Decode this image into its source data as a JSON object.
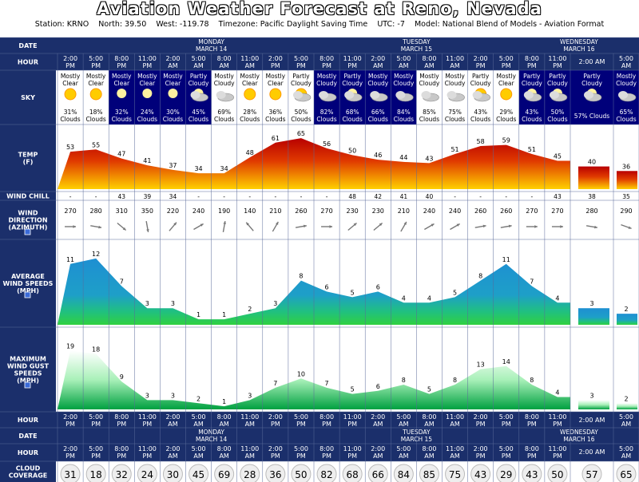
{
  "title": "Aviation Weather Forecast at Reno, Nevada",
  "subtitle": "Station: KRNO    North: 39.50    West: -119.78    Timezone: Pacific Daylight Saving Time    UTC: -7    Model: National Blend of Models - Aviation Format",
  "row_labels": {
    "date": "DATE",
    "hour": "HOUR",
    "sky": "SKY",
    "temp": [
      "TEMP",
      "(F)"
    ],
    "wind_chill": "WIND CHILL",
    "wind_dir": [
      "WIND",
      "DIRECTION",
      "(AZIMUTH)"
    ],
    "avg_wind": [
      "AVERAGE",
      "WIND SPEEDS",
      "(MPH)"
    ],
    "gust": [
      "MAXIMUM",
      "WIND GUST",
      "SPEEDS",
      "(MPH)"
    ],
    "cloud": [
      "CLOUD",
      "COVERAGE"
    ]
  },
  "dates": [
    {
      "label": [
        "MONDAY",
        "MARCH 14"
      ],
      "from": 2,
      "to": 9
    },
    {
      "label": [
        "TUESDAY",
        "MARCH 15"
      ],
      "from": 10,
      "to": 17
    },
    {
      "label": [
        "WEDNESDAY",
        "MARCH 16"
      ],
      "from": 19,
      "to": 20
    }
  ],
  "chart_data": {
    "type": "table",
    "columns": [
      {
        "hour": [
          "2:00",
          "PM"
        ],
        "sky": [
          "Mostly",
          "Clear"
        ],
        "sky_icon": "sun-icon",
        "cloud": 31,
        "temp": 53,
        "wind_chill": "-",
        "dir": 270,
        "wind": 11,
        "gust": 19
      },
      {
        "hour": [
          "5:00",
          "PM"
        ],
        "sky": [
          "Mostly",
          "Clear"
        ],
        "sky_icon": "sun-icon",
        "cloud": 18,
        "temp": 55,
        "wind_chill": "-",
        "dir": 280,
        "wind": 12,
        "gust": 18
      },
      {
        "hour": [
          "8:00",
          "PM"
        ],
        "sky": [
          "Mostly",
          "Clear"
        ],
        "sky_icon": "moon-icon",
        "cloud": 32,
        "temp": 47,
        "wind_chill": "43",
        "dir": 310,
        "wind": 7,
        "gust": 9
      },
      {
        "hour": [
          "11:00",
          "PM"
        ],
        "sky": [
          "Mostly",
          "Clear"
        ],
        "sky_icon": "moon-icon",
        "cloud": 24,
        "temp": 41,
        "wind_chill": "39",
        "dir": 350,
        "wind": 3,
        "gust": 3
      },
      {
        "hour": [
          "2:00",
          "AM"
        ],
        "sky": [
          "Mostly",
          "Clear"
        ],
        "sky_icon": "moon-icon",
        "cloud": 30,
        "temp": 37,
        "wind_chill": "34",
        "dir": 220,
        "wind": 3,
        "gust": 3
      },
      {
        "hour": [
          "5:00",
          "AM"
        ],
        "sky": [
          "Partly",
          "Cloudy"
        ],
        "sky_icon": "moon-cloud-icon",
        "cloud": 45,
        "temp": 34,
        "wind_chill": "-",
        "dir": 240,
        "wind": 1,
        "gust": 2
      },
      {
        "hour": [
          "8:00",
          "AM"
        ],
        "sky": [
          "Mostly",
          "Cloudy"
        ],
        "sky_icon": "cloud-icon",
        "cloud": 69,
        "temp": 34,
        "wind_chill": "-",
        "dir": 190,
        "wind": 1,
        "gust": 1
      },
      {
        "hour": [
          "11:00",
          "AM"
        ],
        "sky": [
          "Mostly",
          "Clear"
        ],
        "sky_icon": "sun-icon",
        "cloud": 28,
        "temp": 48,
        "wind_chill": "-",
        "dir": 140,
        "wind": 2,
        "gust": 3
      },
      {
        "hour": [
          "2:00",
          "PM"
        ],
        "sky": [
          "Mostly",
          "Clear"
        ],
        "sky_icon": "sun-icon",
        "cloud": 36,
        "temp": 61,
        "wind_chill": "-",
        "dir": 210,
        "wind": 3,
        "gust": 7
      },
      {
        "hour": [
          "5:00",
          "PM"
        ],
        "sky": [
          "Partly",
          "Cloudy"
        ],
        "sky_icon": "sun-cloud-icon",
        "cloud": 50,
        "temp": 65,
        "wind_chill": "-",
        "dir": 260,
        "wind": 8,
        "gust": 10
      },
      {
        "hour": [
          "8:00",
          "PM"
        ],
        "sky": [
          "Mostly",
          "Cloudy"
        ],
        "sky_icon": "cloud-night-icon",
        "cloud": 82,
        "temp": 56,
        "wind_chill": "-",
        "dir": 270,
        "wind": 6,
        "gust": 7
      },
      {
        "hour": [
          "11:00",
          "PM"
        ],
        "sky": [
          "Partly",
          "Cloudy"
        ],
        "sky_icon": "moon-cloud-icon",
        "cloud": 68,
        "temp": 50,
        "wind_chill": "48",
        "dir": 230,
        "wind": 5,
        "gust": 5
      },
      {
        "hour": [
          "2:00",
          "AM"
        ],
        "sky": [
          "Mostly",
          "Cloudy"
        ],
        "sky_icon": "cloud-night-icon",
        "cloud": 66,
        "temp": 46,
        "wind_chill": "42",
        "dir": 230,
        "wind": 6,
        "gust": 6
      },
      {
        "hour": [
          "5:00",
          "AM"
        ],
        "sky": [
          "Mostly",
          "Cloudy"
        ],
        "sky_icon": "cloud-night-icon",
        "cloud": 84,
        "temp": 44,
        "wind_chill": "41",
        "dir": 210,
        "wind": 4,
        "gust": 8
      },
      {
        "hour": [
          "8:00",
          "AM"
        ],
        "sky": [
          "Mostly",
          "Cloudy"
        ],
        "sky_icon": "cloud-icon",
        "cloud": 85,
        "temp": 43,
        "wind_chill": "40",
        "dir": 240,
        "wind": 4,
        "gust": 5
      },
      {
        "hour": [
          "11:00",
          "AM"
        ],
        "sky": [
          "Mostly",
          "Cloudy"
        ],
        "sky_icon": "cloud-icon",
        "cloud": 75,
        "temp": 51,
        "wind_chill": "-",
        "dir": 240,
        "wind": 5,
        "gust": 8
      },
      {
        "hour": [
          "2:00",
          "PM"
        ],
        "sky": [
          "Partly",
          "Cloudy"
        ],
        "sky_icon": "sun-cloud-icon",
        "cloud": 43,
        "temp": 58,
        "wind_chill": "-",
        "dir": 260,
        "wind": 8,
        "gust": 13
      },
      {
        "hour": [
          "5:00",
          "PM"
        ],
        "sky": [
          "Mostly",
          "Clear"
        ],
        "sky_icon": "sun-icon",
        "cloud": 29,
        "temp": 59,
        "wind_chill": "-",
        "dir": 260,
        "wind": 11,
        "gust": 14
      },
      {
        "hour": [
          "8:00",
          "PM"
        ],
        "sky": [
          "Partly",
          "Cloudy"
        ],
        "sky_icon": "moon-cloud-icon",
        "cloud": 43,
        "temp": 51,
        "wind_chill": "-",
        "dir": 270,
        "wind": 7,
        "gust": 8
      },
      {
        "hour": [
          "11:00",
          "PM"
        ],
        "sky": [
          "Partly",
          "Cloudy"
        ],
        "sky_icon": "moon-cloud-icon",
        "cloud": 50,
        "temp": 45,
        "wind_chill": "43",
        "dir": 270,
        "wind": 4,
        "gust": 4
      },
      {
        "hour": [
          "2:00 AM"
        ],
        "sky": [
          "Partly",
          "Cloudy"
        ],
        "sky_icon": "moon-cloud-icon",
        "cloud": 57,
        "sky_inline": "57% Clouds",
        "temp": 40,
        "wind_chill": "38",
        "dir": 280,
        "wind": 3,
        "gust": 3
      },
      {
        "hour": [
          "5:00",
          "AM"
        ],
        "sky": [
          "Mostly",
          "Cloudy"
        ],
        "sky_icon": "cloud-night-icon",
        "cloud": 65,
        "temp": 36,
        "wind_chill": "35",
        "dir": 290,
        "wind": 2,
        "gust": 2
      }
    ],
    "cloud_suffix": "Clouds",
    "temp_range": [
      20,
      70
    ],
    "wind_range": [
      0,
      14
    ],
    "gust_range": [
      0,
      24
    ]
  },
  "colors": {
    "header_bg": "#1b2f6b",
    "label_bg": "#1b2f6b",
    "night_bg": "#00007a",
    "day_bg": "#ffffff",
    "wind_top": "#1e8fd2",
    "wind_bottom": "#2ecc40",
    "gust_top": "#ffffff",
    "gust_bottom": "#00a040",
    "temp_top": "#cc1000",
    "temp_bottom": "#ffcc00"
  }
}
